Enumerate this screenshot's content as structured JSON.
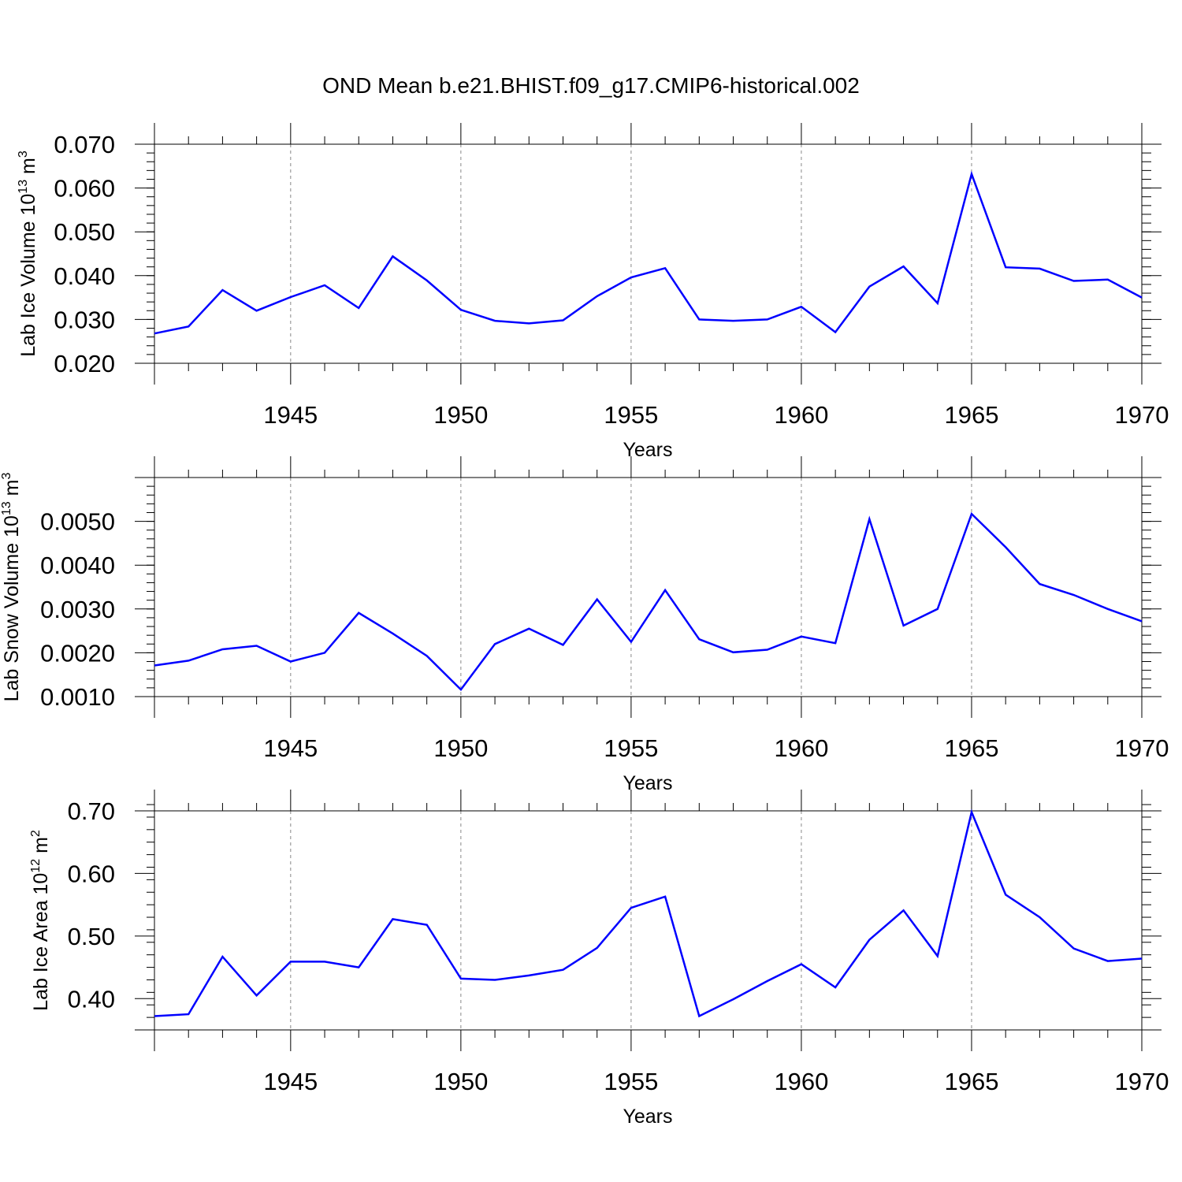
{
  "title": "OND Mean b.e21.BHIST.f09_g17.CMIP6-historical.002",
  "colors": {
    "series": "#0000ff",
    "axes": "#000000",
    "grid": "#888888"
  },
  "chart_data": [
    {
      "type": "line",
      "ylabel": "Lab Ice Volume 10",
      "ylabel_exp": "13",
      "ylabel_unit": " m",
      "ylabel_unit_exp": "3",
      "xlabel": "Years",
      "xlim": [
        1941,
        1970
      ],
      "ylim": [
        0.02,
        0.07
      ],
      "yticks": [
        0.02,
        0.03,
        0.04,
        0.05,
        0.06,
        0.07
      ],
      "ytick_labels": [
        "0.020",
        "0.030",
        "0.040",
        "0.050",
        "0.060",
        "0.070"
      ],
      "ytick_minor_step": 0.002,
      "xticks": [
        1945,
        1950,
        1955,
        1960,
        1965,
        1970
      ],
      "xtick_labels": [
        "1945",
        "1950",
        "1955",
        "1960",
        "1965",
        "1970"
      ],
      "grid_x": [
        1945,
        1950,
        1955,
        1960,
        1965
      ],
      "series": [
        {
          "name": "Lab Ice Volume",
          "x": [
            1941,
            1942,
            1943,
            1944,
            1945,
            1946,
            1947,
            1948,
            1949,
            1950,
            1951,
            1952,
            1953,
            1954,
            1955,
            1956,
            1957,
            1958,
            1959,
            1960,
            1961,
            1962,
            1963,
            1964,
            1965,
            1966,
            1967,
            1968,
            1969,
            1970
          ],
          "values": [
            0.0268,
            0.0284,
            0.0367,
            0.032,
            0.0351,
            0.0378,
            0.0326,
            0.0444,
            0.0389,
            0.0322,
            0.0297,
            0.0291,
            0.0298,
            0.0353,
            0.0396,
            0.0417,
            0.03,
            0.0297,
            0.03,
            0.0329,
            0.0271,
            0.0375,
            0.0421,
            0.0337,
            0.0632,
            0.0419,
            0.0416,
            0.0388,
            0.0391,
            0.035
          ]
        }
      ]
    },
    {
      "type": "line",
      "ylabel": "Lab Snow Volume 10",
      "ylabel_exp": "13",
      "ylabel_unit": " m",
      "ylabel_unit_exp": "3",
      "xlabel": "Years",
      "xlim": [
        1941,
        1970
      ],
      "ylim": [
        0.001,
        0.006
      ],
      "yticks": [
        0.001,
        0.002,
        0.003,
        0.004,
        0.005
      ],
      "ytick_labels": [
        "0.0010",
        "0.0020",
        "0.0030",
        "0.0040",
        "0.0050"
      ],
      "ytick_minor_step": 0.0002,
      "xticks": [
        1945,
        1950,
        1955,
        1960,
        1965,
        1970
      ],
      "xtick_labels": [
        "1945",
        "1950",
        "1955",
        "1960",
        "1965",
        "1970"
      ],
      "grid_x": [
        1945,
        1950,
        1955,
        1960,
        1965
      ],
      "series": [
        {
          "name": "Lab Snow Volume",
          "x": [
            1941,
            1942,
            1943,
            1944,
            1945,
            1946,
            1947,
            1948,
            1949,
            1950,
            1951,
            1952,
            1953,
            1954,
            1955,
            1956,
            1957,
            1958,
            1959,
            1960,
            1961,
            1962,
            1963,
            1964,
            1965,
            1966,
            1967,
            1968,
            1969,
            1970
          ],
          "values": [
            0.00171,
            0.00182,
            0.00208,
            0.00216,
            0.0018,
            0.002,
            0.00291,
            0.00244,
            0.00193,
            0.00116,
            0.0022,
            0.00255,
            0.00218,
            0.00322,
            0.00225,
            0.00343,
            0.00231,
            0.00201,
            0.00207,
            0.00237,
            0.00222,
            0.00505,
            0.00262,
            0.003,
            0.00517,
            0.00441,
            0.00357,
            0.00332,
            0.003,
            0.00272
          ]
        }
      ]
    },
    {
      "type": "line",
      "ylabel": "Lab Ice Area 10",
      "ylabel_exp": "12",
      "ylabel_unit": " m",
      "ylabel_unit_exp": "2",
      "xlabel": "Years",
      "xlim": [
        1941,
        1970
      ],
      "ylim": [
        0.35,
        0.7
      ],
      "yticks": [
        0.4,
        0.5,
        0.6,
        0.7
      ],
      "ytick_labels": [
        "0.40",
        "0.50",
        "0.60",
        "0.70"
      ],
      "ytick_minor_step": 0.02,
      "xticks": [
        1945,
        1950,
        1955,
        1960,
        1965,
        1970
      ],
      "xtick_labels": [
        "1945",
        "1950",
        "1955",
        "1960",
        "1965",
        "1970"
      ],
      "grid_x": [
        1945,
        1950,
        1955,
        1960,
        1965
      ],
      "series": [
        {
          "name": "Lab Ice Area",
          "x": [
            1941,
            1942,
            1943,
            1944,
            1945,
            1946,
            1947,
            1948,
            1949,
            1950,
            1951,
            1952,
            1953,
            1954,
            1955,
            1956,
            1957,
            1958,
            1959,
            1960,
            1961,
            1962,
            1963,
            1964,
            1965,
            1966,
            1967,
            1968,
            1969,
            1970
          ],
          "values": [
            0.372,
            0.375,
            0.467,
            0.405,
            0.459,
            0.459,
            0.45,
            0.527,
            0.518,
            0.432,
            0.43,
            0.437,
            0.446,
            0.481,
            0.545,
            0.563,
            0.372,
            0.399,
            0.428,
            0.455,
            0.418,
            0.494,
            0.541,
            0.468,
            0.698,
            0.566,
            0.53,
            0.48,
            0.46,
            0.464
          ]
        }
      ]
    }
  ]
}
